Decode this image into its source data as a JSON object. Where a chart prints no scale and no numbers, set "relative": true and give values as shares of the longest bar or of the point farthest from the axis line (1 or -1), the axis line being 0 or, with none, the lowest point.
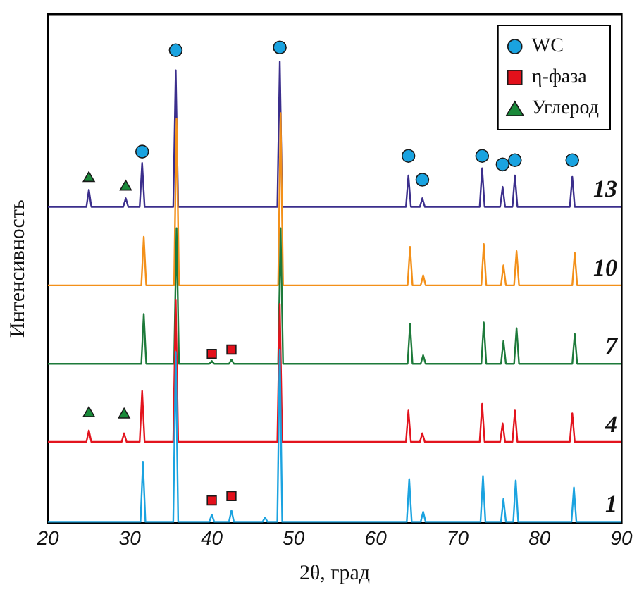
{
  "chart_data": {
    "type": "line",
    "relative": true,
    "xlabel": "2θ, град",
    "ylabel": "Интенсивность",
    "xlim": [
      20,
      90
    ],
    "xticks": [
      20,
      30,
      40,
      50,
      60,
      70,
      80,
      90
    ],
    "grid": false,
    "legend": "top right",
    "series": [
      {
        "name": "13",
        "type": "line",
        "marker": "none",
        "color": "#3b2e8c",
        "x": [
          20,
          24.7,
          25,
          25.3,
          29.2,
          29.5,
          29.8,
          31.2,
          31.5,
          31.8,
          35.3,
          35.6,
          35.9,
          48,
          48.3,
          48.6,
          63.7,
          64,
          64.3,
          65.4,
          65.7,
          66,
          72.7,
          73,
          73.3,
          75.2,
          75.5,
          75.8,
          76.7,
          77,
          77.3,
          83.7,
          84,
          84.3,
          90
        ],
        "values": [
          0.665,
          0.665,
          0.701,
          0.665,
          0.665,
          0.683,
          0.665,
          0.665,
          0.757,
          0.665,
          0.665,
          0.952,
          0.665,
          0.665,
          0.97,
          0.665,
          0.665,
          0.731,
          0.665,
          0.665,
          0.683,
          0.665,
          0.665,
          0.746,
          0.665,
          0.665,
          0.707,
          0.665,
          0.665,
          0.731,
          0.665,
          0.665,
          0.728,
          0.665,
          0.665
        ]
      },
      {
        "name": "10",
        "type": "line",
        "marker": "none",
        "color": "#f39019",
        "x": [
          20,
          31.4,
          31.7,
          32,
          35.4,
          35.7,
          36,
          48.1,
          48.4,
          48.7,
          63.9,
          64.2,
          64.5,
          65.5,
          65.8,
          66.1,
          72.9,
          73.2,
          73.5,
          75.3,
          75.6,
          75.9,
          76.9,
          77.2,
          77.5,
          84,
          84.3,
          84.6,
          90
        ],
        "values": [
          0.5,
          0.5,
          0.602,
          0.5,
          0.5,
          0.85,
          0.5,
          0.5,
          0.862,
          0.5,
          0.5,
          0.581,
          0.5,
          0.5,
          0.521,
          0.5,
          0.5,
          0.587,
          0.5,
          0.5,
          0.542,
          0.5,
          0.5,
          0.572,
          0.5,
          0.5,
          0.569,
          0.5,
          0.5
        ]
      },
      {
        "name": "7",
        "type": "line",
        "marker": "none",
        "color": "#1d7a3a",
        "x": [
          20,
          31.4,
          31.7,
          32,
          35.4,
          35.7,
          36,
          39.7,
          40,
          40.3,
          42.1,
          42.4,
          42.7,
          48.1,
          48.4,
          48.7,
          63.9,
          64.2,
          64.5,
          65.5,
          65.8,
          66.1,
          72.9,
          73.2,
          73.5,
          75.3,
          75.6,
          75.9,
          76.9,
          77.2,
          77.5,
          84,
          84.3,
          84.6,
          90
        ],
        "values": [
          0.335,
          0.335,
          0.44,
          0.335,
          0.335,
          0.62,
          0.335,
          0.335,
          0.341,
          0.335,
          0.335,
          0.344,
          0.335,
          0.335,
          0.62,
          0.335,
          0.335,
          0.419,
          0.335,
          0.335,
          0.353,
          0.335,
          0.335,
          0.422,
          0.335,
          0.335,
          0.383,
          0.335,
          0.335,
          0.41,
          0.335,
          0.335,
          0.398,
          0.335,
          0.335
        ]
      },
      {
        "name": "4",
        "type": "line",
        "marker": "none",
        "color": "#e3141e",
        "x": [
          20,
          24.7,
          25,
          25.3,
          29,
          29.3,
          29.6,
          31.2,
          31.5,
          31.8,
          35.3,
          35.6,
          35.9,
          48,
          48.3,
          48.6,
          63.7,
          64,
          64.3,
          65.4,
          65.7,
          66,
          72.7,
          73,
          73.3,
          75.2,
          75.5,
          75.8,
          76.7,
          77,
          77.3,
          83.7,
          84,
          84.3,
          90
        ],
        "values": [
          0.171,
          0.171,
          0.195,
          0.171,
          0.171,
          0.189,
          0.171,
          0.171,
          0.278,
          0.171,
          0.171,
          0.47,
          0.171,
          0.171,
          0.461,
          0.171,
          0.171,
          0.237,
          0.171,
          0.171,
          0.189,
          0.171,
          0.171,
          0.251,
          0.171,
          0.171,
          0.21,
          0.171,
          0.171,
          0.237,
          0.171,
          0.171,
          0.231,
          0.171,
          0.171
        ]
      },
      {
        "name": "1",
        "type": "line",
        "marker": "none",
        "color": "#1ba3e0",
        "x": [
          20,
          31.3,
          31.6,
          31.9,
          35.3,
          35.6,
          35.9,
          39.7,
          40,
          40.3,
          42.1,
          42.4,
          42.7,
          46.2,
          46.5,
          46.8,
          48,
          48.3,
          48.6,
          63.8,
          64.1,
          64.4,
          65.5,
          65.8,
          66.1,
          72.8,
          73.1,
          73.4,
          75.3,
          75.6,
          75.9,
          76.8,
          77.1,
          77.4,
          83.9,
          84.2,
          84.5,
          90
        ],
        "values": [
          0.003,
          0.003,
          0.129,
          0.003,
          0.003,
          0.36,
          0.003,
          0.003,
          0.018,
          0.003,
          0.003,
          0.027,
          0.003,
          0.003,
          0.012,
          0.003,
          0.003,
          0.365,
          0.003,
          0.003,
          0.093,
          0.003,
          0.003,
          0.024,
          0.003,
          0.003,
          0.099,
          0.003,
          0.003,
          0.051,
          0.003,
          0.003,
          0.09,
          0.003,
          0.003,
          0.075,
          0.003,
          0.003
        ]
      },
      {
        "name": "WC",
        "type": "scatter",
        "marker": "circle",
        "color": "#1aa3e0",
        "x": [
          31.5,
          35.6,
          48.3,
          64,
          65.7,
          73,
          75.5,
          77,
          84
        ],
        "values": [
          0.781,
          0.994,
          1.0,
          0.772,
          0.722,
          0.772,
          0.754,
          0.763,
          0.763
        ]
      },
      {
        "name": "η-фаза",
        "type": "scatter",
        "marker": "square",
        "color": "#e3101b",
        "x": [
          40,
          42.4,
          40,
          42.4
        ],
        "values": [
          0.356,
          0.365,
          0.048,
          0.057
        ]
      },
      {
        "name": "Углерод",
        "type": "scatter",
        "marker": "triangle",
        "color": "#1a8a3a",
        "x": [
          25,
          29.5,
          25,
          29.3
        ],
        "values": [
          0.725,
          0.707,
          0.231,
          0.228
        ]
      }
    ]
  }
}
